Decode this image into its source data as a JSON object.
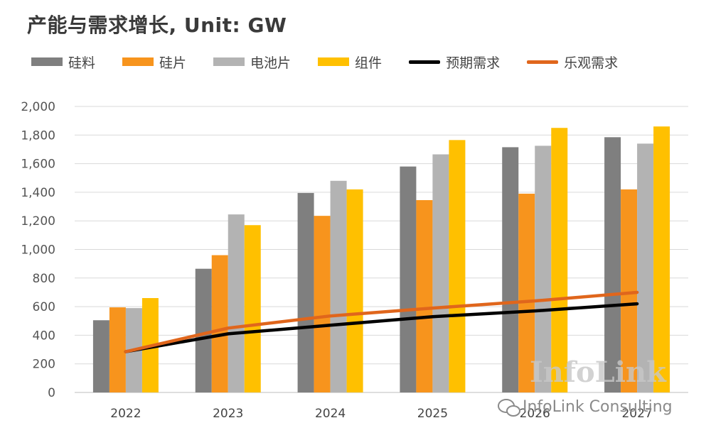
{
  "chart_data": {
    "type": "bar",
    "title": "产能与需求增长, Unit: GW",
    "categories": [
      "2022",
      "2023",
      "2024",
      "2025",
      "2026",
      "2027"
    ],
    "ylim": [
      0,
      2000
    ],
    "yticks": [
      0,
      200,
      400,
      600,
      800,
      1000,
      1200,
      1400,
      1600,
      1800,
      2000
    ],
    "ytick_labels": [
      "0",
      "200",
      "400",
      "600",
      "800",
      "1,000",
      "1,200",
      "1,400",
      "1,600",
      "1,800",
      "2,000"
    ],
    "grid": true,
    "legend_position": "top",
    "series": [
      {
        "name": "硅料",
        "kind": "bar",
        "color": "#7f7f7f",
        "values": [
          505,
          865,
          1395,
          1580,
          1715,
          1785
        ]
      },
      {
        "name": "硅片",
        "kind": "bar",
        "color": "#f7941d",
        "values": [
          595,
          960,
          1235,
          1345,
          1390,
          1420
        ]
      },
      {
        "name": "电池片",
        "kind": "bar",
        "color": "#b3b3b3",
        "values": [
          590,
          1245,
          1480,
          1665,
          1725,
          1740
        ]
      },
      {
        "name": "组件",
        "kind": "bar",
        "color": "#ffc000",
        "values": [
          660,
          1170,
          1420,
          1765,
          1850,
          1860
        ]
      },
      {
        "name": "预期需求",
        "kind": "line",
        "color": "#000000",
        "values": [
          285,
          410,
          470,
          530,
          570,
          620
        ]
      },
      {
        "name": "乐观需求",
        "kind": "line",
        "color": "#e0661c",
        "values": [
          285,
          450,
          535,
          590,
          640,
          700
        ]
      }
    ]
  },
  "watermark": {
    "logo": "InfoLink",
    "account": "InfoLink Consulting"
  }
}
